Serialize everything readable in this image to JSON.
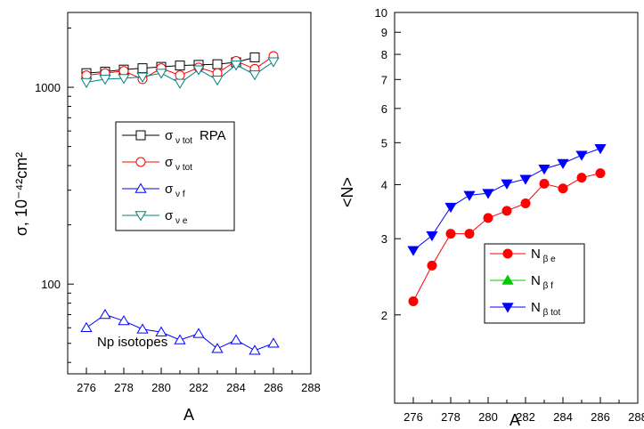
{
  "chart_data": [
    {
      "type": "scatter",
      "title": "",
      "xlabel": "A",
      "ylabel": "σ, 10⁻⁴²cm²",
      "xlim": [
        275,
        288
      ],
      "ylim": [
        35,
        2400
      ],
      "yscale": "log",
      "grid": false,
      "legend_position": "center-left",
      "annotation": "Np isotopes",
      "x_ticks": [
        "276",
        "278",
        "280",
        "282",
        "284",
        "286",
        "288"
      ],
      "y_ticks": [
        "100",
        "1000"
      ],
      "series": [
        {
          "name": "σν tot RPA",
          "label_main": "σ",
          "label_sub": "ν tot",
          "label_suffix": "RPA",
          "color": "#000000",
          "marker": "square",
          "x": [
            276,
            277,
            278,
            279,
            280,
            281,
            282,
            283,
            284,
            285
          ],
          "y": [
            1180,
            1200,
            1230,
            1250,
            1270,
            1290,
            1300,
            1310,
            1340,
            1420
          ]
        },
        {
          "name": "σν tot",
          "label_main": "σ",
          "label_sub": "ν tot",
          "label_suffix": "",
          "color": "#ff0000",
          "marker": "circle",
          "x": [
            276,
            277,
            278,
            279,
            280,
            281,
            282,
            283,
            284,
            285,
            286
          ],
          "y": [
            1150,
            1180,
            1210,
            1100,
            1250,
            1150,
            1260,
            1180,
            1360,
            1240,
            1440
          ]
        },
        {
          "name": "σν f",
          "label_main": "σ",
          "label_sub": "ν f",
          "label_suffix": "",
          "color": "#0000ff",
          "marker": "triangle-up",
          "x": [
            276,
            277,
            278,
            279,
            280,
            281,
            282,
            283,
            284,
            285,
            286
          ],
          "y": [
            60,
            70,
            65,
            59,
            57,
            52,
            56,
            47,
            52,
            46,
            50
          ]
        },
        {
          "name": "σν e",
          "label_main": "σ",
          "label_sub": "ν e",
          "label_suffix": "",
          "color": "#008080",
          "marker": "triangle-down",
          "x": [
            276,
            277,
            278,
            279,
            280,
            281,
            282,
            283,
            284,
            285,
            286
          ],
          "y": [
            1060,
            1100,
            1110,
            1130,
            1180,
            1050,
            1230,
            1090,
            1300,
            1160,
            1350
          ]
        }
      ]
    },
    {
      "type": "line",
      "title": "",
      "xlabel": "A",
      "ylabel": "<N>",
      "xlim": [
        275,
        288
      ],
      "ylim": [
        1.25,
        10
      ],
      "yscale": "log",
      "grid": false,
      "legend_position": "bottom-center",
      "x_ticks": [
        "276",
        "278",
        "280",
        "282",
        "284",
        "286",
        "288"
      ],
      "y_ticks": [
        "2",
        "3",
        "4",
        "5",
        "6",
        "7",
        "8",
        "9",
        "10"
      ],
      "series": [
        {
          "name": "Nβ e",
          "label_main": "N",
          "label_sub": "β e",
          "color": "#ff0000",
          "marker": "circle",
          "x": [
            276,
            277,
            278,
            279,
            280,
            281,
            282,
            283,
            284,
            285,
            286
          ],
          "y": [
            2.15,
            2.6,
            3.08,
            3.08,
            3.35,
            3.48,
            3.62,
            4.02,
            3.92,
            4.15,
            4.25
          ]
        },
        {
          "name": "Nβ f",
          "label_main": "N",
          "label_sub": "β f",
          "color": "#00cc00",
          "marker": "triangle-up",
          "x": [],
          "y": []
        },
        {
          "name": "Nβ tot",
          "label_main": "N",
          "label_sub": "β tot",
          "color": "#0000ff",
          "marker": "triangle-down",
          "x": [
            276,
            277,
            278,
            279,
            280,
            281,
            282,
            283,
            284,
            285,
            286
          ],
          "y": [
            2.82,
            3.05,
            3.55,
            3.78,
            3.82,
            4.02,
            4.12,
            4.35,
            4.48,
            4.68,
            4.85
          ]
        }
      ]
    }
  ]
}
